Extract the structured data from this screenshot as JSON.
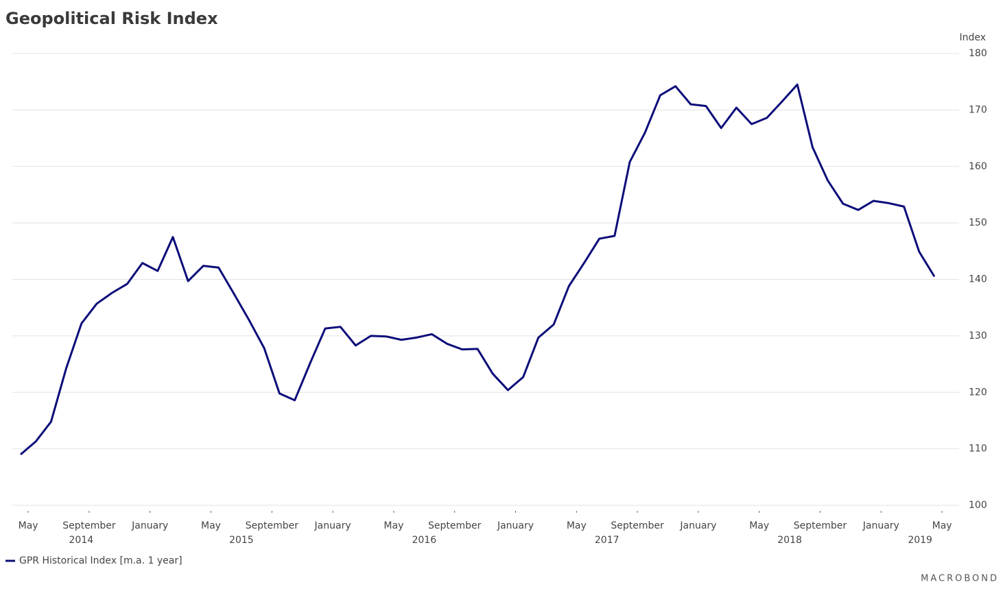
{
  "chart_data": {
    "type": "line",
    "title": "Geopolitical Risk Index",
    "y_axis_label": "Index",
    "source": "MACROBOND",
    "x": [
      "2014-04",
      "2014-05",
      "2014-06",
      "2014-07",
      "2014-08",
      "2014-09",
      "2014-10",
      "2014-11",
      "2014-12",
      "2015-01",
      "2015-02",
      "2015-03",
      "2015-04",
      "2015-05",
      "2015-06",
      "2015-07",
      "2015-08",
      "2015-09",
      "2015-10",
      "2015-11",
      "2015-12",
      "2016-01",
      "2016-02",
      "2016-03",
      "2016-04",
      "2016-05",
      "2016-06",
      "2016-07",
      "2016-08",
      "2016-09",
      "2016-10",
      "2016-11",
      "2016-12",
      "2017-01",
      "2017-02",
      "2017-03",
      "2017-04",
      "2017-05",
      "2017-06",
      "2017-07",
      "2017-08",
      "2017-09",
      "2017-10",
      "2017-11",
      "2017-12",
      "2018-01",
      "2018-02",
      "2018-03",
      "2018-04",
      "2018-05",
      "2018-06",
      "2018-07",
      "2018-08",
      "2018-09",
      "2018-10",
      "2018-11",
      "2018-12",
      "2019-01",
      "2019-02",
      "2019-03",
      "2019-04"
    ],
    "series": [
      {
        "name": "GPR Historical Index [m.a. 1 year]",
        "color": "#0c0c7a",
        "values": [
          109.0,
          111.3,
          114.8,
          124.3,
          132.2,
          135.7,
          137.6,
          139.2,
          142.9,
          141.5,
          147.5,
          139.7,
          142.4,
          142.1,
          137.5,
          132.8,
          127.8,
          119.8,
          118.6,
          125.1,
          131.3,
          131.6,
          128.3,
          130.0,
          129.9,
          129.3,
          129.7,
          130.3,
          128.6,
          127.6,
          127.7,
          123.3,
          120.4,
          122.7,
          129.7,
          132.0,
          138.8,
          142.9,
          147.2,
          147.7,
          160.8,
          166.0,
          172.6,
          174.2,
          171.0,
          170.7,
          166.8,
          170.4,
          167.5,
          168.6,
          171.5,
          174.5,
          163.4,
          157.5,
          153.4,
          152.3,
          153.9,
          153.5,
          152.9,
          144.9,
          140.5
        ]
      }
    ],
    "xticks": [
      {
        "value": "2014-05",
        "label": "May"
      },
      {
        "value": "2014-09",
        "label": "September"
      },
      {
        "value": "2015-01",
        "label": "January"
      },
      {
        "value": "2015-05",
        "label": "May"
      },
      {
        "value": "2015-09",
        "label": "September"
      },
      {
        "value": "2016-01",
        "label": "January"
      },
      {
        "value": "2016-05",
        "label": "May"
      },
      {
        "value": "2016-09",
        "label": "September"
      },
      {
        "value": "2017-01",
        "label": "January"
      },
      {
        "value": "2017-05",
        "label": "May"
      },
      {
        "value": "2017-09",
        "label": "September"
      },
      {
        "value": "2018-01",
        "label": "January"
      },
      {
        "value": "2018-05",
        "label": "May"
      },
      {
        "value": "2018-09",
        "label": "September"
      },
      {
        "value": "2019-01",
        "label": "January"
      },
      {
        "value": "2019-05",
        "label": "May"
      }
    ],
    "x_year_labels": [
      "2014",
      "2015",
      "2016",
      "2017",
      "2018",
      "2019"
    ],
    "ylim": [
      100,
      180
    ],
    "yticks": [
      100,
      110,
      120,
      130,
      140,
      150,
      160,
      170,
      180
    ],
    "grid": true,
    "legend": "bottom-left"
  }
}
